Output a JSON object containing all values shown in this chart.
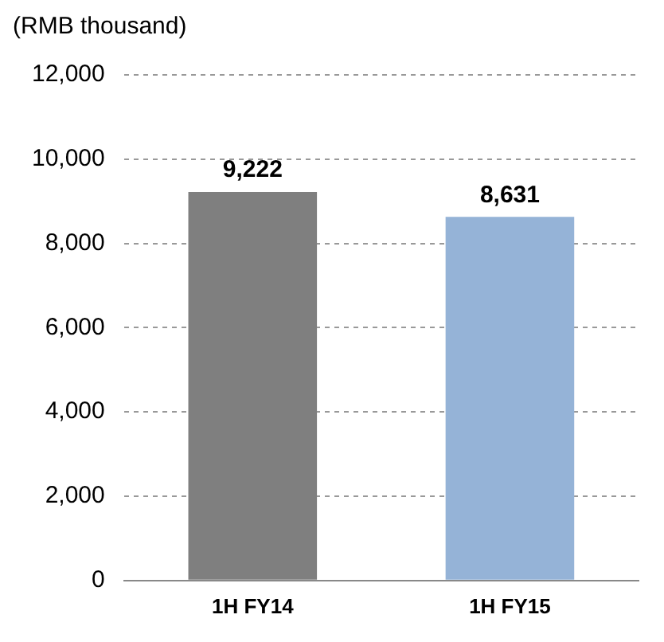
{
  "chart_data": {
    "type": "bar",
    "ylabel": "(RMB thousand)",
    "categories": [
      "1H FY14",
      "1H FY15"
    ],
    "values": [
      9222,
      8631
    ],
    "colors": [
      "#7f7f7f",
      "#95b3d7"
    ],
    "ylim": [
      0,
      12000
    ],
    "yticks": [
      {
        "value": 0,
        "label": "0"
      },
      {
        "value": 2000,
        "label": "2,000"
      },
      {
        "value": 4000,
        "label": "4,000"
      },
      {
        "value": 6000,
        "label": "6,000"
      },
      {
        "value": 8000,
        "label": "8,000"
      },
      {
        "value": 10000,
        "label": "10,000"
      },
      {
        "value": 12000,
        "label": "12,000"
      }
    ],
    "value_labels": [
      "9,222",
      "8,631"
    ],
    "grid": "y",
    "legend": false
  }
}
